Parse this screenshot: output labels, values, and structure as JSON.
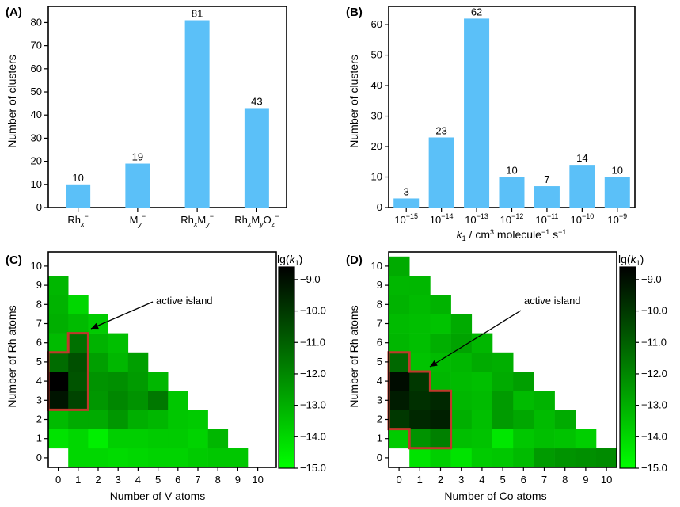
{
  "colors": {
    "bar": "#5bc0f8",
    "axis": "#000000",
    "island": "#c0392b",
    "cmap_low": "#00ff00",
    "cmap_high": "#000000"
  },
  "chart_data": [
    {
      "panel": "(A)",
      "type": "bar",
      "categories": [
        "Rh_x^-",
        "M_y^-",
        "Rh_xM_y^-",
        "Rh_xM_yO_z^-"
      ],
      "values": [
        10,
        19,
        81,
        43
      ],
      "xlabel": "",
      "ylabel": "Number of clusters",
      "ylim": [
        0,
        87
      ],
      "yticks": [
        0,
        10,
        20,
        30,
        40,
        50,
        60,
        70,
        80
      ]
    },
    {
      "panel": "(B)",
      "type": "bar",
      "categories": [
        "10^-15",
        "10^-14",
        "10^-13",
        "10^-12",
        "10^-11",
        "10^-10",
        "10^-9"
      ],
      "values": [
        3,
        23,
        62,
        10,
        7,
        14,
        10
      ],
      "xlabel": "k1 / cm3 molecule-1 s-1",
      "ylabel": "Number of clusters",
      "ylim": [
        0,
        66
      ],
      "yticks": [
        0,
        10,
        20,
        30,
        40,
        50,
        60
      ]
    },
    {
      "panel": "(C)",
      "type": "heatmap",
      "xlabel": "Number of V atoms",
      "ylabel": "Number of Rh atoms",
      "xticks": [
        0,
        1,
        2,
        3,
        4,
        5,
        6,
        7,
        8,
        9,
        10
      ],
      "yticks": [
        0,
        1,
        2,
        3,
        4,
        5,
        6,
        7,
        8,
        9,
        10
      ],
      "colorbar_label": "lg(k1)",
      "colorbar_range": [
        -15.0,
        -8.6
      ],
      "colorbar_ticks": [
        -9.0,
        -10.0,
        -11.0,
        -12.0,
        -13.0,
        -14.0,
        -15.0
      ],
      "annotation": "active island",
      "rows": [
        [
          null,
          -14.0,
          -14.0,
          -14.1,
          -14.0,
          -13.9,
          -13.9,
          -13.7,
          -13.6,
          -13.6
        ],
        [
          -14.3,
          -14.0,
          -14.6,
          -13.8,
          -13.8,
          -13.7,
          -13.7,
          -13.9,
          -13.2
        ],
        [
          -13.3,
          -12.9,
          -12.9,
          -12.4,
          -13.0,
          -13.2,
          -13.6,
          -13.7
        ],
        [
          -9.1,
          -10.3,
          -12.4,
          -12.0,
          -12.3,
          -11.6,
          -13.6
        ],
        [
          -8.6,
          -10.7,
          -12.3,
          -12.2,
          -12.5,
          -13.2
        ],
        [
          -11.3,
          -10.6,
          -12.6,
          -13.2,
          -12.6
        ],
        [
          -13.3,
          -11.4,
          -13.1,
          -13.4
        ],
        [
          -13.0,
          -13.3,
          -13.7
        ],
        [
          -13.1,
          -14.0
        ],
        [
          -13.2
        ]
      ],
      "island": [
        [
          0,
          3
        ],
        [
          0,
          4
        ],
        [
          0,
          5
        ],
        [
          1,
          3
        ],
        [
          1,
          4
        ],
        [
          1,
          5
        ],
        [
          1,
          6
        ]
      ]
    },
    {
      "panel": "(D)",
      "type": "heatmap",
      "xlabel": "Number of Co atoms",
      "ylabel": "Number of Rh atoms",
      "xticks": [
        0,
        1,
        2,
        3,
        4,
        5,
        6,
        7,
        8,
        9,
        10
      ],
      "yticks": [
        0,
        1,
        2,
        3,
        4,
        5,
        6,
        7,
        8,
        9,
        10
      ],
      "colorbar_label": "lg(k1)",
      "colorbar_range": [
        -15.0,
        -8.6
      ],
      "colorbar_ticks": [
        -9.0,
        -10.0,
        -11.0,
        -12.0,
        -13.0,
        -14.0,
        -15.0
      ],
      "annotation": "active island",
      "rows": [
        [
          null,
          -14.3,
          -13.8,
          -14.3,
          -13.7,
          -13.6,
          -13.3,
          -12.5,
          -12.3,
          -12.2,
          -12.1
        ],
        [
          -13.7,
          -12.3,
          -11.8,
          -13.4,
          -13.5,
          -14.4,
          -13.6,
          -13.4,
          -13.5,
          -13.8
        ],
        [
          -10.0,
          -9.6,
          -9.4,
          -13.0,
          -13.4,
          -12.5,
          -12.8,
          -13.3,
          -12.9
        ],
        [
          -9.3,
          -9.8,
          -9.6,
          -13.2,
          -13.3,
          -12.5,
          -13.3,
          -13.1
        ],
        [
          -8.9,
          -10.0,
          -13.2,
          -13.3,
          -13.4,
          -12.9,
          -12.6
        ],
        [
          -11.2,
          -13.5,
          -13.3,
          -13.2,
          -12.9,
          -13.0
        ],
        [
          -13.2,
          -13.4,
          -13.0,
          -12.7,
          -13.2
        ],
        [
          -13.3,
          -13.4,
          -13.5,
          -12.9
        ],
        [
          -13.1,
          -13.3,
          -13.1
        ],
        [
          -13.2,
          -13.2
        ],
        [
          -12.9
        ]
      ],
      "island": [
        [
          0,
          2
        ],
        [
          0,
          3
        ],
        [
          0,
          4
        ],
        [
          0,
          5
        ],
        [
          1,
          1
        ],
        [
          1,
          2
        ],
        [
          1,
          3
        ],
        [
          1,
          4
        ],
        [
          2,
          1
        ],
        [
          2,
          2
        ],
        [
          2,
          3
        ]
      ]
    }
  ]
}
